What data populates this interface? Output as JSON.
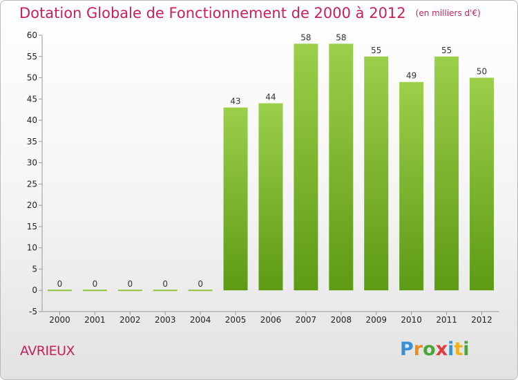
{
  "chart_data": {
    "type": "bar",
    "title": "Dotation Globale de Fonctionnement de 2000 à 2012",
    "unit_note": "(en milliers d'€)",
    "categories": [
      "2000",
      "2001",
      "2002",
      "2003",
      "2004",
      "2005",
      "2006",
      "2007",
      "2008",
      "2009",
      "2010",
      "2011",
      "2012"
    ],
    "values": [
      0,
      0,
      0,
      0,
      0,
      43,
      44,
      58,
      58,
      55,
      49,
      55,
      50
    ],
    "ylim": [
      -5,
      60
    ],
    "yticks": [
      -5,
      0,
      5,
      10,
      15,
      20,
      25,
      30,
      35,
      40,
      45,
      50,
      55,
      60
    ],
    "grid": false,
    "colors": {
      "bar_top": "#9ccf4a",
      "bar_bottom": "#5e9a14",
      "zero_line": "#8fc43c"
    }
  },
  "footer": {
    "commune": "AVRIEUX",
    "logo_letters": [
      "P",
      "r",
      "o",
      "x",
      "i",
      "t",
      "i"
    ],
    "logo_colors": [
      "#3b8fd4",
      "#f08a1c",
      "#4aa63a",
      "#e23b3b",
      "#3b8fd4",
      "#f0b21c",
      "#4aa63a"
    ]
  }
}
